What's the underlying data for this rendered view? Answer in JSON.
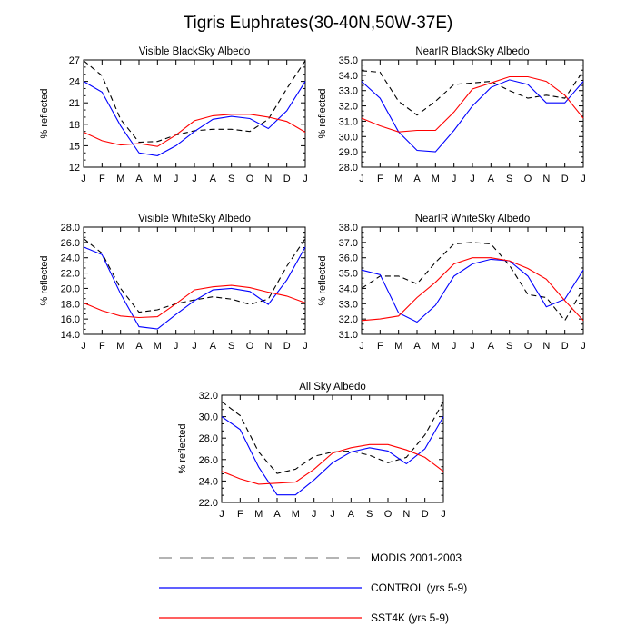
{
  "title": "Tigris Euphrates(30-40N,50W-37E)",
  "months": [
    "J",
    "F",
    "M",
    "A",
    "M",
    "J",
    "J",
    "A",
    "S",
    "O",
    "N",
    "D",
    "J"
  ],
  "ylabel": "% reflected",
  "colors": {
    "modis": "#000000",
    "control": "#0000ff",
    "sst4k": "#ff0000"
  },
  "legend": [
    {
      "key": "modis",
      "label": "MODIS 2001-2003",
      "style": "dashed"
    },
    {
      "key": "control",
      "label": "CONTROL (yrs 5-9)",
      "style": "solid"
    },
    {
      "key": "sst4k",
      "label": "SST4K (yrs 5-9)",
      "style": "solid"
    }
  ],
  "chart_data": [
    {
      "type": "line",
      "title": "Visible BlackSky Albedo",
      "ylabel": "% reflected",
      "ylim": [
        12,
        27
      ],
      "yticks": [
        "12",
        "15",
        "18",
        "21",
        "24",
        "27"
      ],
      "x": [
        "J",
        "F",
        "M",
        "A",
        "M",
        "J",
        "J",
        "A",
        "S",
        "O",
        "N",
        "D",
        "J"
      ],
      "series": [
        {
          "name": "MODIS 2001-2003",
          "values": [
            26.9,
            24.8,
            18.7,
            15.5,
            15.6,
            16.5,
            17.1,
            17.3,
            17.3,
            17.0,
            18.7,
            23.0,
            26.9
          ]
        },
        {
          "name": "CONTROL (yrs 5-9)",
          "values": [
            24.0,
            22.5,
            17.8,
            14.0,
            13.6,
            15.0,
            17.0,
            18.7,
            19.1,
            18.8,
            17.4,
            19.9,
            24.0
          ]
        },
        {
          "name": "SST4K (yrs 5-9)",
          "values": [
            16.9,
            15.7,
            15.1,
            15.3,
            14.9,
            16.5,
            18.5,
            19.2,
            19.4,
            19.4,
            19.0,
            18.4,
            16.9
          ]
        }
      ]
    },
    {
      "type": "line",
      "title": "NearIR BlackSky Albedo",
      "ylabel": "% reflected",
      "ylim": [
        28,
        35
      ],
      "yticks": [
        "28.0",
        "29.0",
        "30.0",
        "31.0",
        "32.0",
        "33.0",
        "34.0",
        "35.0"
      ],
      "x": [
        "J",
        "F",
        "M",
        "A",
        "M",
        "J",
        "J",
        "A",
        "S",
        "O",
        "N",
        "D",
        "J"
      ],
      "series": [
        {
          "name": "MODIS 2001-2003",
          "values": [
            34.3,
            34.2,
            32.3,
            31.4,
            32.3,
            33.4,
            33.5,
            33.6,
            33.0,
            32.5,
            32.7,
            32.5,
            34.3
          ]
        },
        {
          "name": "CONTROL (yrs 5-9)",
          "values": [
            33.6,
            32.5,
            30.3,
            29.1,
            29.0,
            30.4,
            32.0,
            33.2,
            33.7,
            33.4,
            32.2,
            32.2,
            33.6
          ]
        },
        {
          "name": "SST4K (yrs 5-9)",
          "values": [
            31.2,
            30.7,
            30.3,
            30.4,
            30.4,
            31.6,
            33.1,
            33.5,
            33.9,
            33.9,
            33.6,
            32.7,
            31.2
          ]
        }
      ]
    },
    {
      "type": "line",
      "title": "Visible WhiteSky Albedo",
      "ylabel": "% reflected",
      "ylim": [
        14,
        28
      ],
      "yticks": [
        "14.0",
        "16.0",
        "18.0",
        "20.0",
        "22.0",
        "24.0",
        "26.0",
        "28.0"
      ],
      "x": [
        "J",
        "F",
        "M",
        "A",
        "M",
        "J",
        "J",
        "A",
        "S",
        "O",
        "N",
        "D",
        "J"
      ],
      "series": [
        {
          "name": "MODIS 2001-2003",
          "values": [
            26.5,
            24.6,
            20.0,
            16.9,
            17.2,
            18.0,
            18.5,
            18.9,
            18.6,
            17.9,
            18.6,
            22.9,
            26.5
          ]
        },
        {
          "name": "CONTROL (yrs 5-9)",
          "values": [
            25.4,
            24.4,
            19.3,
            15.0,
            14.7,
            16.6,
            18.4,
            19.8,
            20.0,
            19.6,
            17.9,
            21.1,
            25.4
          ]
        },
        {
          "name": "SST4K (yrs 5-9)",
          "values": [
            18.1,
            17.1,
            16.4,
            16.2,
            16.3,
            18.0,
            19.8,
            20.2,
            20.4,
            20.1,
            19.5,
            19.0,
            18.1
          ]
        }
      ]
    },
    {
      "type": "line",
      "title": "NearIR WhiteSky Albedo",
      "ylabel": "% reflected",
      "ylim": [
        31,
        38
      ],
      "yticks": [
        "31.0",
        "32.0",
        "33.0",
        "34.0",
        "35.0",
        "36.0",
        "37.0",
        "38.0"
      ],
      "x": [
        "J",
        "F",
        "M",
        "A",
        "M",
        "J",
        "J",
        "A",
        "S",
        "O",
        "N",
        "D",
        "J"
      ],
      "series": [
        {
          "name": "MODIS 2001-2003",
          "values": [
            34.0,
            34.8,
            34.8,
            34.3,
            35.7,
            36.9,
            37.0,
            36.9,
            35.5,
            33.6,
            33.4,
            31.9,
            34.0
          ]
        },
        {
          "name": "CONTROL (yrs 5-9)",
          "values": [
            35.2,
            34.9,
            32.4,
            31.8,
            32.9,
            34.8,
            35.6,
            35.9,
            35.8,
            34.8,
            32.8,
            33.3,
            35.2
          ]
        },
        {
          "name": "SST4K (yrs 5-9)",
          "values": [
            31.9,
            32.0,
            32.2,
            33.4,
            34.4,
            35.6,
            36.0,
            36.0,
            35.8,
            35.3,
            34.6,
            33.2,
            31.9
          ]
        }
      ]
    },
    {
      "type": "line",
      "title": "All Sky Albedo",
      "ylabel": "% reflected",
      "ylim": [
        22,
        32
      ],
      "yticks": [
        "22.0",
        "24.0",
        "26.0",
        "28.0",
        "30.0",
        "32.0"
      ],
      "x": [
        "J",
        "F",
        "M",
        "A",
        "M",
        "J",
        "J",
        "A",
        "S",
        "O",
        "N",
        "D",
        "J"
      ],
      "series": [
        {
          "name": "MODIS 2001-2003",
          "values": [
            31.4,
            30.1,
            26.7,
            24.7,
            25.1,
            26.3,
            26.7,
            26.8,
            26.4,
            25.7,
            26.2,
            28.3,
            31.4
          ]
        },
        {
          "name": "CONTROL (yrs 5-9)",
          "values": [
            30.0,
            28.8,
            25.3,
            22.7,
            22.7,
            24.1,
            25.7,
            26.7,
            27.1,
            26.8,
            25.6,
            27.0,
            30.0
          ]
        },
        {
          "name": "SST4K (yrs 5-9)",
          "values": [
            24.9,
            24.2,
            23.7,
            23.8,
            23.9,
            25.1,
            26.6,
            27.1,
            27.4,
            27.4,
            26.9,
            26.2,
            24.9
          ]
        }
      ]
    }
  ]
}
